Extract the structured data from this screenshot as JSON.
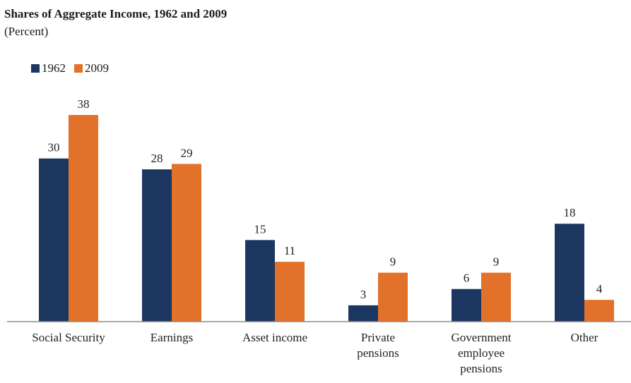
{
  "title": "Shares of Aggregate Income, 1962 and 2009",
  "subtitle": "(Percent)",
  "colors": {
    "s1962": "#1c375f",
    "s2009": "#e2712a"
  },
  "chart_data": {
    "type": "bar",
    "title": "Shares of Aggregate Income, 1962 and 2009",
    "subtitle": "(Percent)",
    "categories": [
      [
        "Social Security"
      ],
      [
        "Earnings"
      ],
      [
        "Asset income"
      ],
      [
        "Private",
        "pensions"
      ],
      [
        "Government",
        "employee",
        "pensions"
      ],
      [
        "Other"
      ]
    ],
    "series": [
      {
        "name": "1962",
        "values": [
          30,
          28,
          15,
          3,
          6,
          18
        ],
        "color": "#1c375f"
      },
      {
        "name": "2009",
        "values": [
          38,
          29,
          11,
          9,
          9,
          4
        ],
        "color": "#e2712a"
      }
    ],
    "ylim": [
      0,
      40
    ],
    "grid": false,
    "legend": "top-left",
    "data_labels": true
  }
}
